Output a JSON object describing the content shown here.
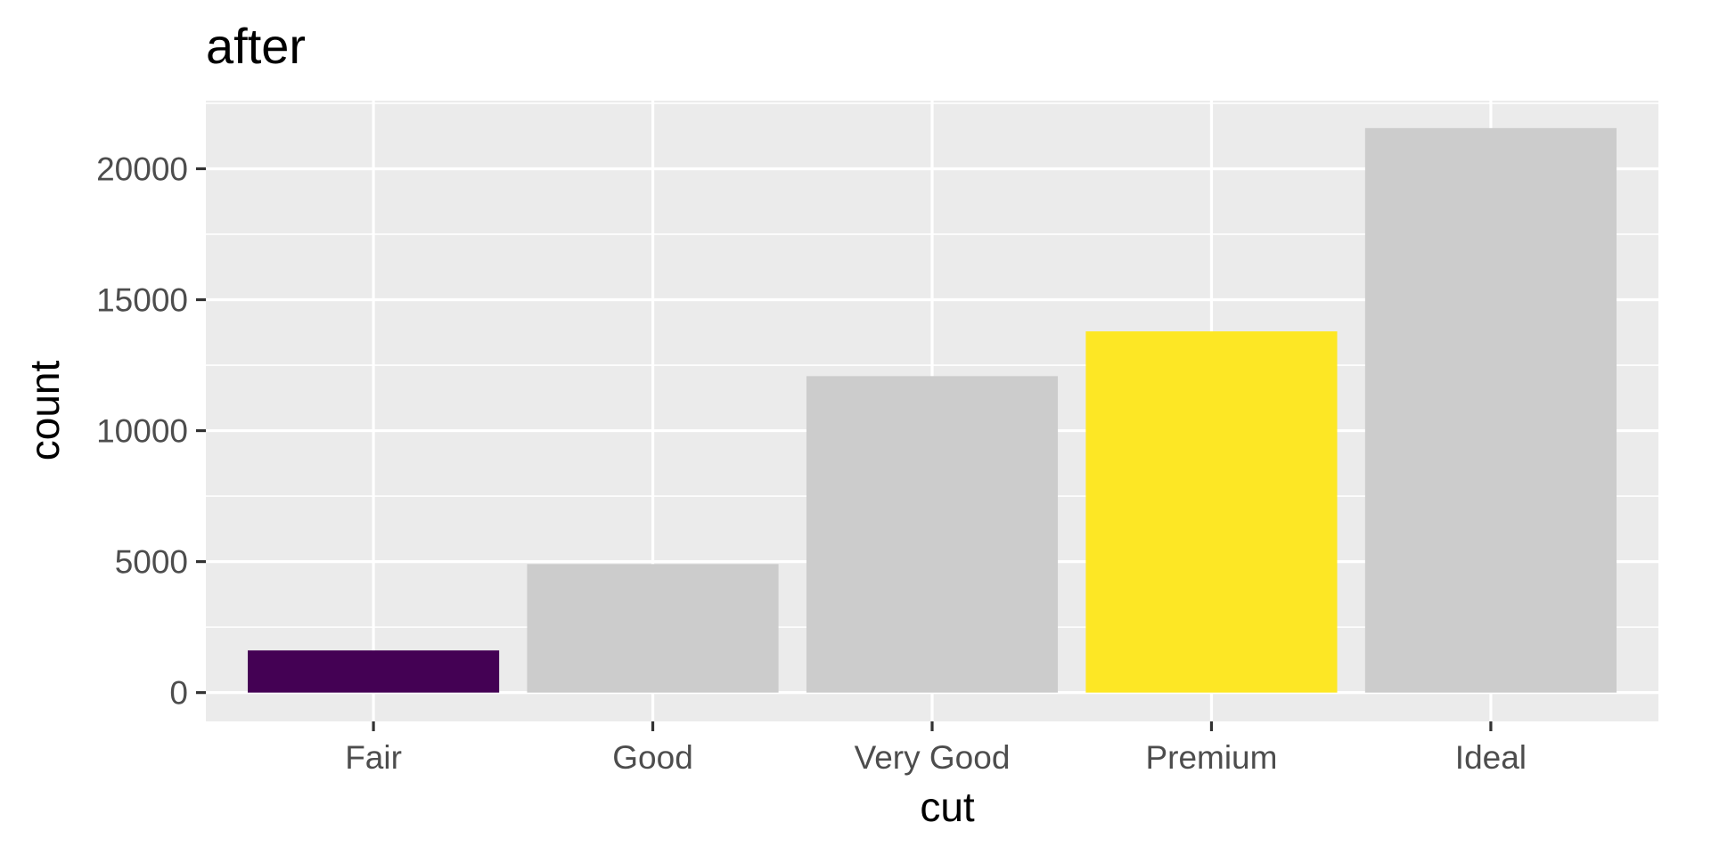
{
  "chart_data": {
    "type": "bar",
    "title": "after",
    "xlabel": "cut",
    "ylabel": "count",
    "categories": [
      "Fair",
      "Good",
      "Very Good",
      "Premium",
      "Ideal"
    ],
    "values": [
      1610,
      4906,
      12082,
      13791,
      21551
    ],
    "bar_colors": [
      "#440154",
      "#CCCCCC",
      "#CCCCCC",
      "#FDE725",
      "#CCCCCC"
    ],
    "ylim": [
      -1100,
      22600
    ],
    "yticks": [
      0,
      5000,
      10000,
      15000,
      20000
    ],
    "grid": true,
    "panel_background": "#EBEBEB",
    "gridline_color": "#FFFFFF",
    "legend": "none"
  }
}
